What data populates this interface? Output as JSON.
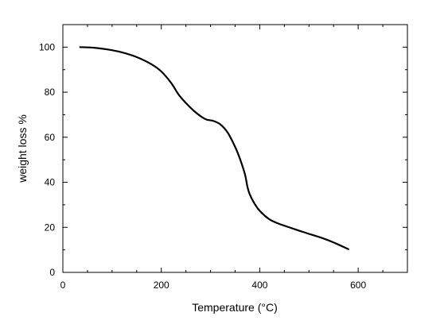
{
  "chart_data": {
    "type": "line",
    "xlabel": "Temperature (°C)",
    "ylabel": "weight loss %",
    "xlim": [
      0,
      700
    ],
    "ylim": [
      0,
      110
    ],
    "x_ticks": [
      0,
      200,
      400,
      600
    ],
    "y_ticks": [
      0,
      20,
      40,
      60,
      80,
      100
    ],
    "x_minor_step": 50,
    "y_minor_step": 10,
    "grid": false,
    "colors": {
      "line": "#000000",
      "axis": "#000000"
    },
    "series": [
      {
        "x": [
          35,
          60,
          90,
          120,
          150,
          180,
          200,
          220,
          235,
          250,
          270,
          290,
          305,
          320,
          335,
          350,
          360,
          370,
          375,
          380,
          390,
          400,
          420,
          440,
          460,
          490,
          530,
          555,
          580
        ],
        "y": [
          100,
          99.8,
          99.0,
          97.7,
          95.6,
          92.4,
          89.2,
          84.1,
          79.0,
          75.2,
          71.0,
          68.0,
          67.3,
          65.7,
          62.0,
          55.7,
          50.3,
          43.5,
          38.0,
          34.5,
          30.3,
          27.3,
          23.5,
          21.5,
          20.0,
          17.8,
          15.0,
          12.8,
          10.3
        ]
      }
    ]
  }
}
